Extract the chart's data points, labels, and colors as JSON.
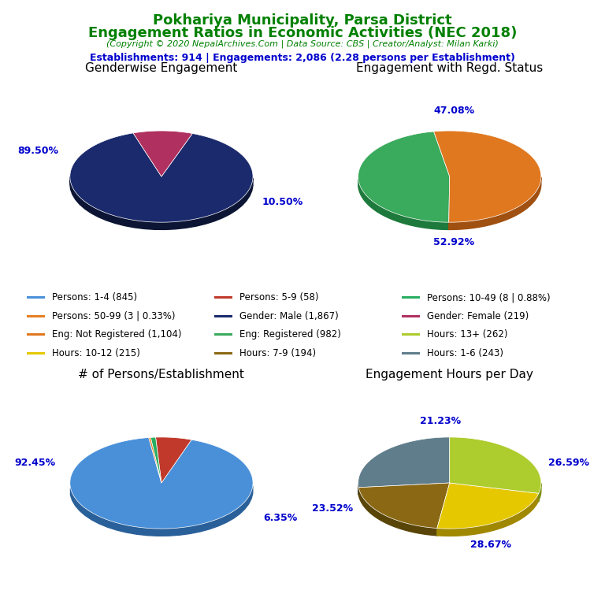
{
  "title_line1": "Pokhariya Municipality, Parsa District",
  "title_line2": "Engagement Ratios in Economic Activities (NEC 2018)",
  "title_color": "#008000",
  "copyright_text": "(Copyright © 2020 NepalArchives.Com | Data Source: CBS | Creator/Analyst: Milan Karki)",
  "stats_text": "Establishments: 914 | Engagements: 2,086 (2.28 persons per Establishment)",
  "stats_color": "#0000CD",
  "pie1_title": "Genderwise Engagement",
  "pie1_values": [
    89.5,
    10.5
  ],
  "pie1_colors": [
    "#1a2a6c",
    "#b03060"
  ],
  "pie1_shadow_colors": [
    "#0d1535",
    "#7a1040"
  ],
  "pie1_startangle": 108,
  "pie2_title": "Engagement with Regd. Status",
  "pie2_values": [
    47.08,
    52.92
  ],
  "pie2_colors": [
    "#3aaa5c",
    "#e07820"
  ],
  "pie2_shadow_colors": [
    "#1e7a3c",
    "#a05010"
  ],
  "pie2_startangle": 100,
  "pie3_title": "# of Persons/Establishment",
  "pie3_values": [
    92.45,
    6.35,
    0.88,
    0.33
  ],
  "pie3_colors": [
    "#4a90d9",
    "#c0392b",
    "#27ae60",
    "#e67e22"
  ],
  "pie3_shadow_colors": [
    "#2a6099",
    "#801b1b",
    "#1a7a40",
    "#a05010"
  ],
  "pie3_startangle": 98,
  "pie4_title": "Engagement Hours per Day",
  "pie4_values": [
    26.59,
    21.23,
    23.52,
    28.67
  ],
  "pie4_colors": [
    "#607d8b",
    "#8b6914",
    "#e6c800",
    "#adcc2d"
  ],
  "pie4_shadow_colors": [
    "#3a5060",
    "#5a4508",
    "#a08800",
    "#7a9010"
  ],
  "pie4_startangle": 90,
  "legend_items": [
    {
      "label": "Persons: 1-4 (845)",
      "color": "#4a90d9"
    },
    {
      "label": "Persons: 5-9 (58)",
      "color": "#c0392b"
    },
    {
      "label": "Persons: 10-49 (8 | 0.88%)",
      "color": "#27ae60"
    },
    {
      "label": "Persons: 50-99 (3 | 0.33%)",
      "color": "#e67e22"
    },
    {
      "label": "Gender: Male (1,867)",
      "color": "#1a2a6c"
    },
    {
      "label": "Gender: Female (219)",
      "color": "#b03060"
    },
    {
      "label": "Eng: Not Registered (1,104)",
      "color": "#e07820"
    },
    {
      "label": "Eng: Registered (982)",
      "color": "#3aaa5c"
    },
    {
      "label": "Hours: 13+ (262)",
      "color": "#adcc2d"
    },
    {
      "label": "Hours: 10-12 (215)",
      "color": "#e6c800"
    },
    {
      "label": "Hours: 7-9 (194)",
      "color": "#8b6914"
    },
    {
      "label": "Hours: 1-6 (243)",
      "color": "#607d8b"
    }
  ],
  "bg_color": "#ffffff",
  "label_color": "#0000CD",
  "pie_yscale": 0.5,
  "shadow_depth": 0.08
}
